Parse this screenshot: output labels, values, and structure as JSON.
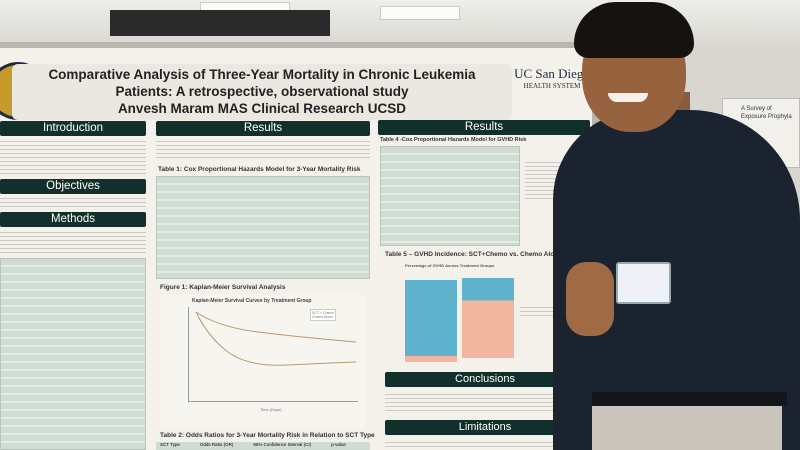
{
  "poster": {
    "title_line1": "Comparative Analysis of Three-Year Mortality in Chronic Leukemia",
    "title_line2": "Patients: A retrospective, observational study",
    "author": "Anvesh Maram MAS Clinical Research UCSD",
    "logo_line1": "UC San Diego",
    "logo_line2": "HEALTH SYSTEM",
    "sections": {
      "introduction": "Introduction",
      "objectives": "Objectives",
      "methods": "Methods",
      "results_1": "Results",
      "results_2": "Results",
      "conclusions": "Conclusions",
      "limitations": "Limitations"
    },
    "captions": {
      "table1": "Table 1: Cox Proportional Hazards Model for 3-Year Mortality Risk",
      "figure1": "Figure 1: Kaplan-Meier Survival Analysis",
      "km_title": "Kaplan-Meier Survival Curves by Treatment Group",
      "km_xlabel": "Time (Days)",
      "km_legend_1": "SCT + Chemo",
      "km_legend_2": "Chemo Alone",
      "table2": "Table 2: Odds Ratios for 3-Year Mortality Risk in Relation to SCT Type",
      "table2_cols": [
        "SCT Type",
        "Odds Ratio (OR)",
        "95% Confidence Interval (CI)",
        "p-value"
      ],
      "table4": "Table 4 -Cox Proportional Hazards Model for GVHD Risk",
      "table5": "Table 5 – GVHD Incidence: SCT+Chemo vs. Chemo Alone",
      "bar_title": "Percentage of GVHD Across Treatment Groups"
    },
    "colors": {
      "header": "#12302b",
      "bar_blue": "#5fb3cf",
      "bar_salmon": "#f2b5a0"
    }
  },
  "background_poster": {
    "line1": "A Survey of",
    "line2": "Exposure Prophyla"
  }
}
